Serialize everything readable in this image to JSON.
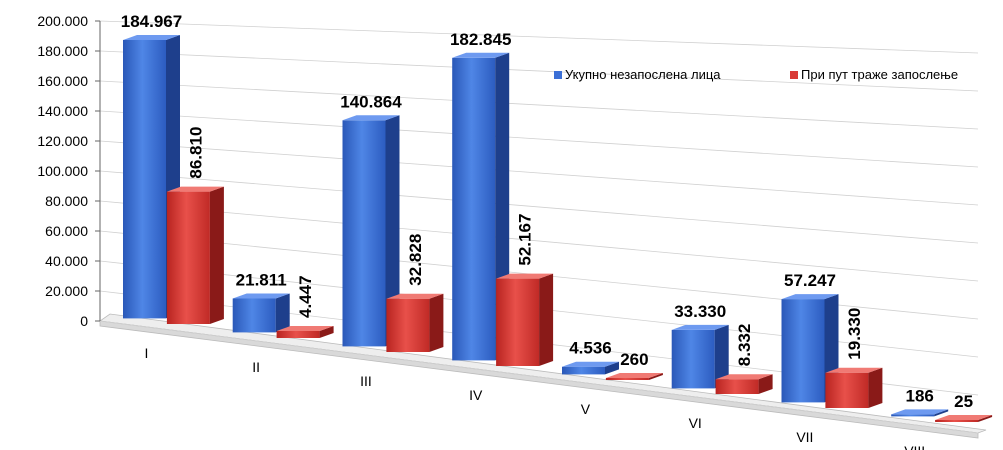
{
  "chart_data": {
    "type": "bar",
    "title": "",
    "xlabel": "",
    "ylabel": "",
    "categories": [
      "I",
      "II",
      "III",
      "IV",
      "V",
      "VI",
      "VII",
      "VIII"
    ],
    "series": [
      {
        "name": "Укупно незапослена лица",
        "color": "#3b6fd6",
        "values": [
          184967,
          21811,
          140864,
          182845,
          4536,
          33330,
          57247,
          186
        ],
        "labels": [
          "184.967",
          "21.811",
          "140.864",
          "182.845",
          "4.536",
          "33.330",
          "57.247",
          "186"
        ]
      },
      {
        "name": "При пут траже запослење",
        "color": "#d93a36",
        "values": [
          86810,
          4447,
          32828,
          52167,
          260,
          8332,
          19330,
          25
        ],
        "labels": [
          "86.810",
          "4.447",
          "32.828",
          "52.167",
          "260",
          "8.332",
          "19.330",
          "25"
        ]
      }
    ],
    "ylim": [
      0,
      200000
    ],
    "y_ticks": [
      "0",
      "20.000",
      "40.000",
      "60.000",
      "80.000",
      "100.000",
      "120.000",
      "140.000",
      "160.000",
      "180.000",
      "200.000"
    ],
    "grid": true,
    "legend_position": "top-right"
  }
}
